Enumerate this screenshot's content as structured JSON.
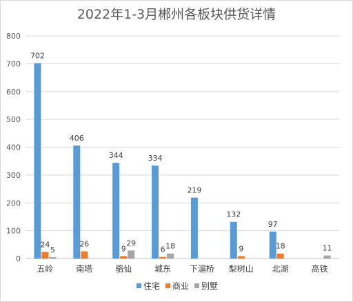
{
  "chart_data": {
    "type": "bar",
    "title": "2022年1-3月郴州各板块供货详情",
    "categories": [
      "五岭",
      "南塔",
      "骆仙",
      "城东",
      "下湄桥",
      "梨树山",
      "北湖",
      "高铁"
    ],
    "series": [
      {
        "name": "住宅",
        "color": "#5b9bd5",
        "values": [
          702,
          406,
          344,
          334,
          219,
          132,
          97,
          0
        ],
        "labels": [
          "702",
          "406",
          "344",
          "334",
          "219",
          "132",
          "97",
          ""
        ]
      },
      {
        "name": "商业",
        "color": "#ed7d31",
        "values": [
          24,
          26,
          9,
          6,
          0,
          9,
          18,
          0
        ],
        "labels": [
          "24",
          "26",
          "9",
          "6",
          "",
          "9",
          "18",
          ""
        ]
      },
      {
        "name": "别墅",
        "color": "#a5a5a5",
        "values": [
          5,
          0,
          29,
          18,
          0,
          0,
          0,
          11
        ],
        "labels": [
          "5",
          "",
          "29",
          "18",
          "",
          "",
          "",
          "11"
        ]
      }
    ],
    "yticks": [
      "0",
      "100",
      "200",
      "300",
      "400",
      "500",
      "600",
      "700",
      "800"
    ],
    "ylim": [
      0,
      800
    ],
    "grid": true,
    "legend_position": "bottom"
  }
}
